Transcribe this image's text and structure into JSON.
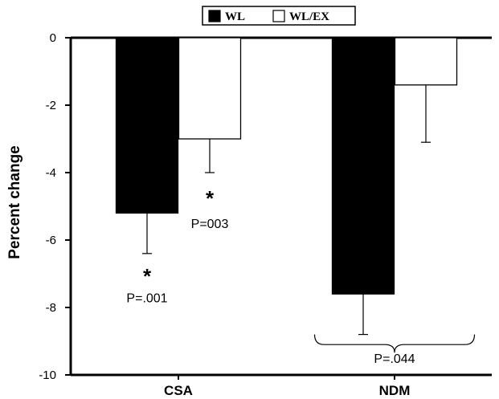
{
  "chart_data": {
    "type": "bar",
    "categories": [
      "CSA",
      "NDM"
    ],
    "series": [
      {
        "name": "WL",
        "values": [
          -5.2,
          -7.6
        ],
        "error": [
          1.2,
          1.2
        ],
        "color": "#000000"
      },
      {
        "name": "WL/EX",
        "values": [
          -3.0,
          -1.4
        ],
        "error": [
          1.0,
          1.7
        ],
        "color": "#ffffff"
      }
    ],
    "xlabel": "",
    "ylabel": "Percent change",
    "ylim": [
      -10,
      0
    ],
    "yticks": [
      "0",
      "-2",
      "-4",
      "-6",
      "-8",
      "-10"
    ],
    "grid": false,
    "legend_position": "top-center",
    "annotations": [
      {
        "text": "*",
        "category": "CSA",
        "series": "WL",
        "y": -6.9,
        "kind": "star"
      },
      {
        "text": "P=.001",
        "category": "CSA",
        "series": "WL",
        "y": -7.7,
        "kind": "pvalue"
      },
      {
        "text": "*",
        "category": "CSA",
        "series": "WL/EX",
        "y": -4.6,
        "kind": "star"
      },
      {
        "text": "P=003",
        "category": "CSA",
        "series": "WL/EX",
        "y": -5.5,
        "kind": "pvalue"
      },
      {
        "text": "P=.044",
        "category": "NDM",
        "series": "both",
        "y": -9.4,
        "kind": "pvalue"
      }
    ]
  }
}
